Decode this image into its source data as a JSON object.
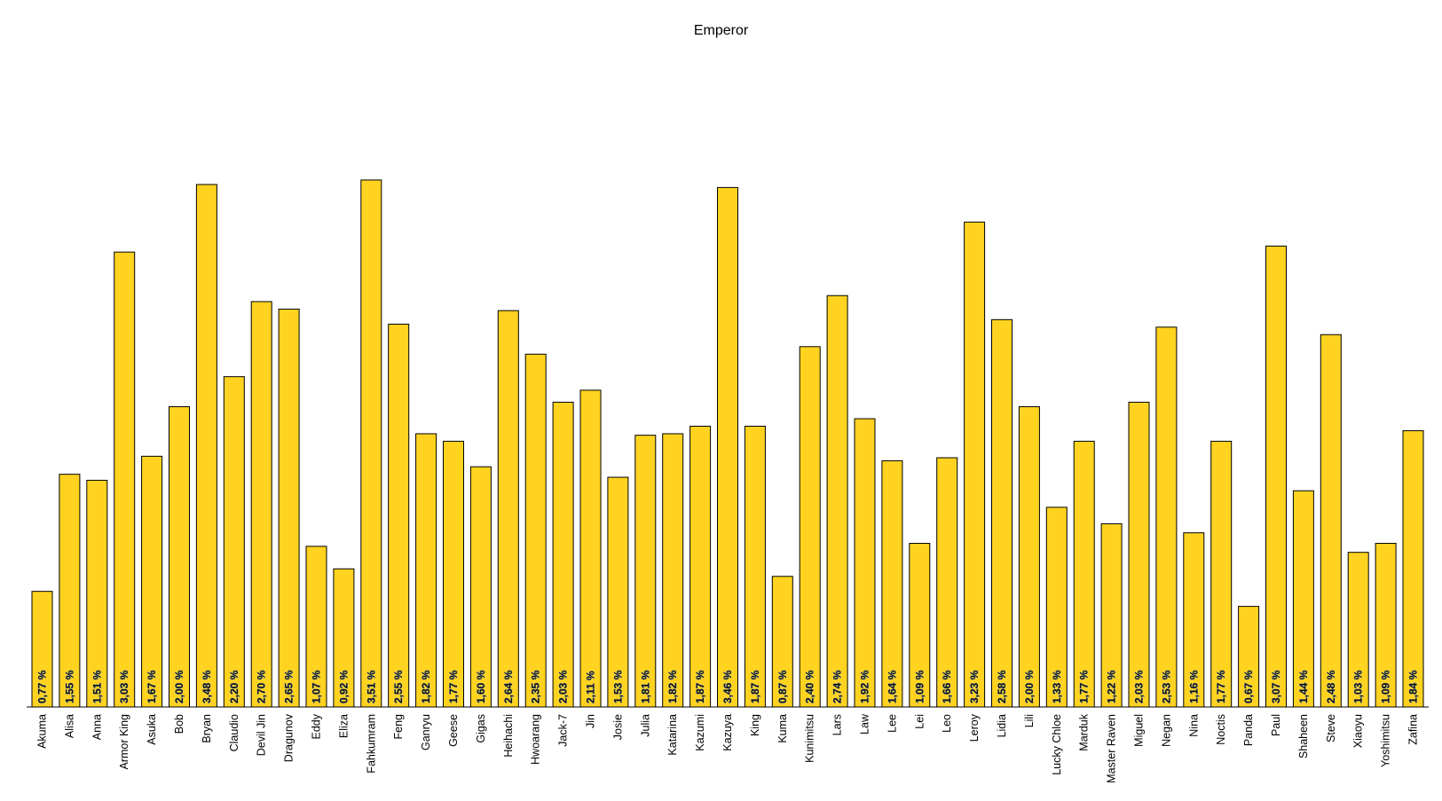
{
  "chart_data": {
    "type": "bar",
    "title": "Emperor",
    "xlabel": "",
    "ylabel": "",
    "ylim": [
      0,
      4.0
    ],
    "grid": false,
    "legend": "none",
    "bar_color": "#FFD320",
    "categories": [
      "Akuma",
      "Alisa",
      "Anna",
      "Armor King",
      "Asuka",
      "Bob",
      "Bryan",
      "Claudio",
      "Devil Jin",
      "Dragunov",
      "Eddy",
      "Eliza",
      "Fahkumram",
      "Feng",
      "Ganryu",
      "Geese",
      "Gigas",
      "Heihachi",
      "Hwoarang",
      "Jack-7",
      "Jin",
      "Josie",
      "Julia",
      "Katarina",
      "Kazumi",
      "Kazuya",
      "King",
      "Kuma",
      "Kunimitsu",
      "Lars",
      "Law",
      "Lee",
      "Lei",
      "Leo",
      "Leroy",
      "Lidia",
      "Lili",
      "Lucky Chloe",
      "Marduk",
      "Master Raven",
      "Miguel",
      "Negan",
      "Nina",
      "Noctis",
      "Panda",
      "Paul",
      "Shaheen",
      "Steve",
      "Xiaoyu",
      "Yoshimitsu",
      "Zafina"
    ],
    "values": [
      0.77,
      1.55,
      1.51,
      3.03,
      1.67,
      2.0,
      3.48,
      2.2,
      2.7,
      2.65,
      1.07,
      0.92,
      3.51,
      2.55,
      1.82,
      1.77,
      1.6,
      2.64,
      2.35,
      2.03,
      2.11,
      1.53,
      1.81,
      1.82,
      1.87,
      3.46,
      1.87,
      0.87,
      2.4,
      2.74,
      1.92,
      1.64,
      1.09,
      1.66,
      3.23,
      2.58,
      2.0,
      1.33,
      1.77,
      1.22,
      2.03,
      2.53,
      1.16,
      1.77,
      0.67,
      3.07,
      1.44,
      2.48,
      1.03,
      1.09,
      1.84
    ],
    "value_labels": [
      "0,77 %",
      "1,55 %",
      "1,51 %",
      "3,03 %",
      "1,67 %",
      "2,00 %",
      "3,48 %",
      "2,20 %",
      "2,70 %",
      "2,65 %",
      "1,07 %",
      "0,92 %",
      "3,51 %",
      "2,55 %",
      "1,82 %",
      "1,77 %",
      "1,60 %",
      "2,64 %",
      "2,35 %",
      "2,03 %",
      "2,11 %",
      "1,53 %",
      "1,81 %",
      "1,82 %",
      "1,87 %",
      "3,46 %",
      "1,87 %",
      "0,87 %",
      "2,40 %",
      "2,74 %",
      "1,92 %",
      "1,64 %",
      "1,09 %",
      "1,66 %",
      "3,23 %",
      "2,58 %",
      "2,00 %",
      "1,33 %",
      "1,77 %",
      "1,22 %",
      "2,03 %",
      "2,53 %",
      "1,16 %",
      "1,77 %",
      "0,67 %",
      "3,07 %",
      "1,44 %",
      "2,48 %",
      "1,03 %",
      "1,09 %",
      "1,84 %"
    ]
  }
}
